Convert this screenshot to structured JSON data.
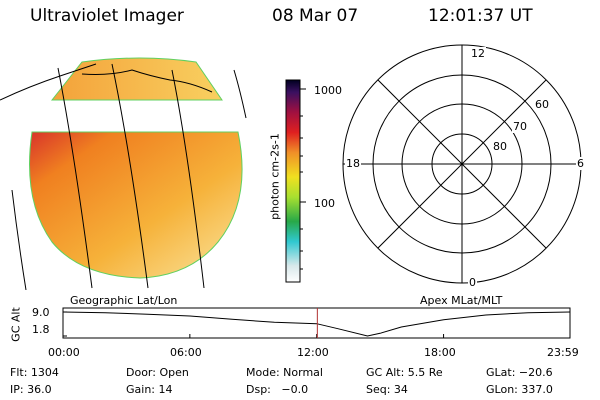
{
  "header": {
    "instrument": "Ultraviolet Imager",
    "date": "08 Mar 07",
    "time": "12:01:37 UT"
  },
  "colorbar": {
    "label": "photon cm-2s-1",
    "ticks": [
      "1000",
      "100"
    ],
    "scale": "log"
  },
  "image_panel": {
    "footer_left": "Geographic Lat/Lon",
    "footer_right": "Apex MLat/MLT"
  },
  "polar_plot": {
    "mlt_labels": [
      "12",
      "18",
      "6",
      "0"
    ],
    "mlat_labels": [
      "60",
      "70",
      "80"
    ]
  },
  "altitude_strip": {
    "ylabel": "GC Alt",
    "yticks": [
      "9.0",
      "1.8"
    ]
  },
  "status": {
    "row1": [
      "Flt: 1304",
      "Door: Open",
      "Mode: Normal",
      "GC Alt: 5.5 Re",
      "GLat: −20.6"
    ],
    "row2": [
      "IP: 36.0",
      "Gain: 14",
      "Dsp:   −0.0",
      "Seq: 34",
      "GLon: 337.0"
    ]
  },
  "chart_data": {
    "type": "line",
    "title": "",
    "xlabel": "",
    "ylabel": "GC Alt",
    "x_ticks": [
      "00:00",
      "06:00",
      "12:00",
      "18:00",
      "23:59"
    ],
    "x": [
      0,
      2,
      4,
      6,
      8,
      10,
      12,
      13,
      14.4,
      15,
      16,
      18,
      20,
      22,
      23.98
    ],
    "y": [
      9.0,
      8.8,
      8.3,
      7.8,
      6.8,
      5.9,
      5.5,
      4.0,
      1.8,
      2.6,
      4.5,
      6.7,
      8.1,
      8.8,
      9.0
    ],
    "ylim": [
      1.8,
      9.0
    ],
    "xlim": [
      0,
      23.98
    ],
    "current_time_marker": 12.03,
    "colors": {
      "line": "#000000",
      "marker": "#b03030"
    }
  }
}
